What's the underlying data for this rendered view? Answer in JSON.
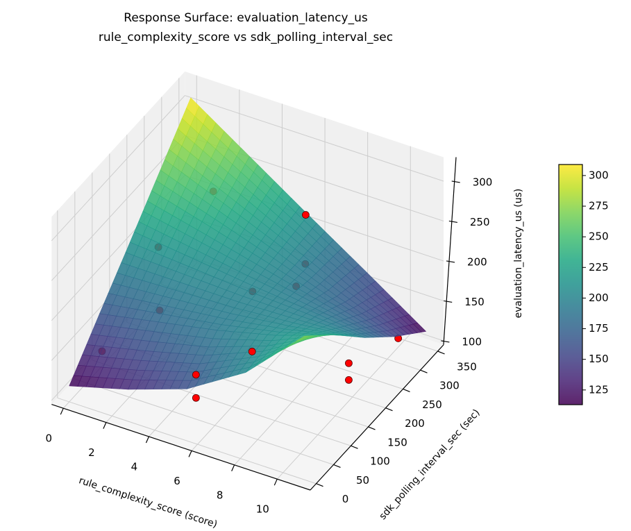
{
  "chart_data": {
    "type": "surface",
    "title_lines": [
      "Response Surface: evaluation_latency_us",
      "rule_complexity_score vs sdk_polling_interval_sec"
    ],
    "xlabel": "rule_complexity_score (score)",
    "ylabel": "sdk_polling_interval_sec (sec)",
    "zlabel": "evaluation_latency_us (us)",
    "xlim": [
      -0.55,
      11.55
    ],
    "ylim": [
      -17,
      367
    ],
    "zlim": [
      95,
      330
    ],
    "xticks": [
      0,
      2,
      4,
      6,
      8,
      10
    ],
    "yticks": [
      0,
      50,
      100,
      150,
      200,
      250,
      300,
      350
    ],
    "zticks": [
      100,
      150,
      200,
      250,
      300
    ],
    "grid": true,
    "colormap": "viridis",
    "surface": {
      "x": [
        0,
        2.75,
        5.5,
        8.25,
        11
      ],
      "y": [
        0,
        87.5,
        175,
        262.5,
        350
      ],
      "z": [
        [
          115,
          135,
          160,
          205,
          275
        ],
        [
          164,
          178,
          192,
          210,
          235
        ],
        [
          212,
          206,
          200,
          196,
          190
        ],
        [
          261,
          234,
          206,
          176,
          150
        ],
        [
          310,
          261,
          212,
          164,
          115
        ]
      ]
    },
    "points": [
      {
        "x": 6.4,
        "y": 287,
        "z": 250
      },
      {
        "x": 7.4,
        "y": 71,
        "z": 190
      },
      {
        "x": 5.1,
        "y": 51,
        "z": 150
      },
      {
        "x": 5.1,
        "y": 51,
        "z": 121
      },
      {
        "x": 10.2,
        "y": 177,
        "z": 150
      },
      {
        "x": 10.2,
        "y": 177,
        "z": 129
      },
      {
        "x": 3.1,
        "y": 224,
        "z": 280
      },
      {
        "x": 1.65,
        "y": 155,
        "z": 230
      },
      {
        "x": 1.94,
        "y": 141,
        "z": 160
      },
      {
        "x": 0.43,
        "y": 68,
        "z": 130
      },
      {
        "x": 5.7,
        "y": 177,
        "z": 200
      },
      {
        "x": 6.95,
        "y": 252,
        "z": 210
      },
      {
        "x": 6.7,
        "y": 241,
        "z": 185
      },
      {
        "x": 10.5,
        "y": 301,
        "z": 125
      }
    ],
    "point_color": "#ff0000",
    "colorbar": {
      "range": [
        113,
        309
      ],
      "ticks": [
        125,
        150,
        175,
        200,
        225,
        250,
        275,
        300
      ]
    }
  }
}
